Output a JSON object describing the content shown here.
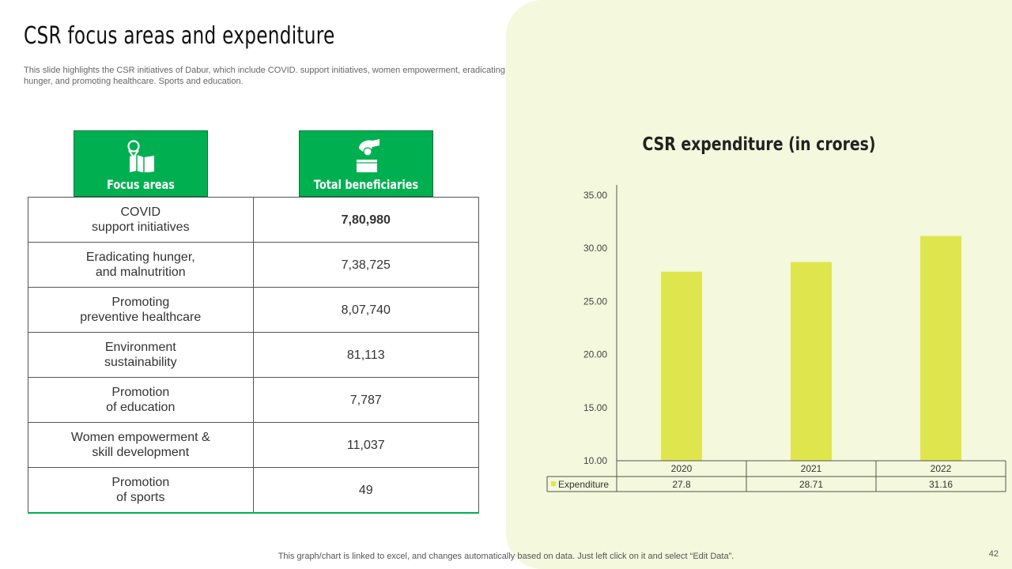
{
  "slide": {
    "title": "CSR focus areas and expenditure",
    "subtitle": "This slide highlights the CSR initiatives of Dabur, which include COVID. support initiatives, women empowerment, eradicating hunger, and promoting healthcare. Sports and education.",
    "footer": "This graph/chart is linked to excel, and changes automatically based on data. Just left click on it and select “Edit Data”.",
    "page_number": "42"
  },
  "table": {
    "headers": [
      {
        "label": "Focus areas",
        "icon": "map-pin-icon"
      },
      {
        "label": "Total beneficiaries",
        "icon": "hand-wallet-icon"
      }
    ],
    "rows": [
      {
        "area_line1": "COVID",
        "area_line2": "support initiatives",
        "value": "7,80,980",
        "bold": true
      },
      {
        "area_line1": "Eradicating hunger,",
        "area_line2": "and malnutrition",
        "value": "7,38,725",
        "bold": false
      },
      {
        "area_line1": "Promoting",
        "area_line2": "preventive healthcare",
        "value": "8,07,740",
        "bold": false
      },
      {
        "area_line1": "Environment",
        "area_line2": "sustainability",
        "value": "81,113",
        "bold": false
      },
      {
        "area_line1": "Promotion",
        "area_line2": "of education",
        "value": "7,787",
        "bold": false
      },
      {
        "area_line1": "Women empowerment &",
        "area_line2": "skill development",
        "value": "11,037",
        "bold": false
      },
      {
        "area_line1": "Promotion",
        "area_line2": "of sports",
        "value": "49",
        "bold": false
      }
    ]
  },
  "colors": {
    "header_green": "#00b050",
    "bar": "#dfe64d",
    "panel_bg": "#f4f8dc"
  },
  "chart_data": {
    "type": "bar",
    "title": "CSR expenditure  (in crores)",
    "categories": [
      "2020",
      "2021",
      "2022"
    ],
    "series": [
      {
        "name": "Expenditure",
        "values": [
          27.8,
          28.71,
          31.16
        ]
      }
    ],
    "value_labels": [
      "27.8",
      "28.71",
      "31.16"
    ],
    "ylim": [
      10,
      35
    ],
    "yticks": [
      "10.00",
      "15.00",
      "20.00",
      "25.00",
      "30.00",
      "35.00"
    ],
    "grid": false,
    "legend": "data-table"
  }
}
